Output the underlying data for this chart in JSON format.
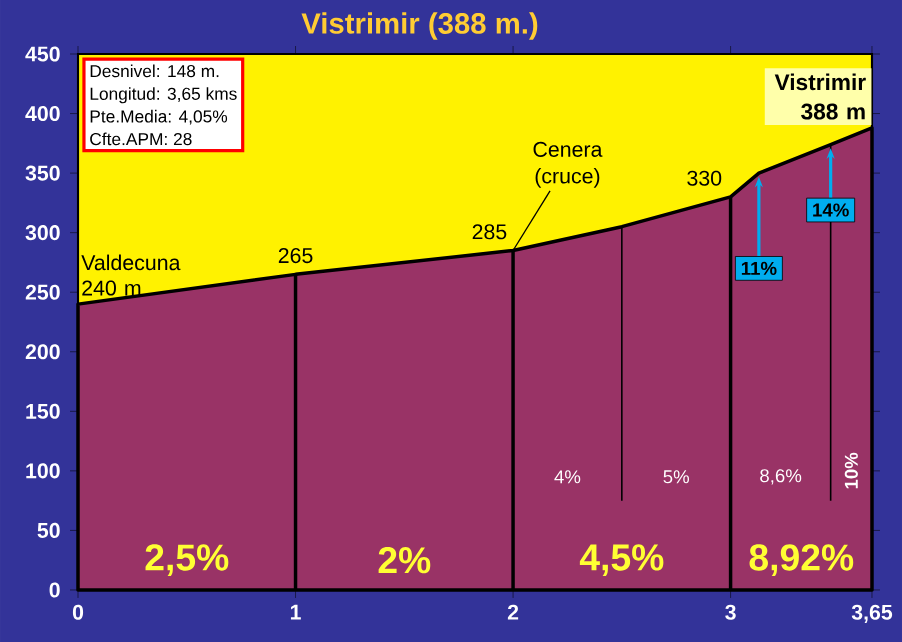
{
  "chart_data": {
    "type": "area",
    "title": "Vistrimir (388 m.)",
    "x": [
      0,
      1,
      2,
      2.5,
      3,
      3.13,
      3.46,
      3.65
    ],
    "series": [
      {
        "values": [
          240,
          265,
          285,
          305,
          330,
          350,
          374,
          388
        ],
        "color": "#993366"
      }
    ],
    "xlim": [
      0,
      3.65
    ],
    "xticks": [
      0,
      1,
      2,
      3,
      {
        "value": 3.65,
        "label": "3,65"
      }
    ],
    "ylim": [
      0,
      450
    ],
    "yticks": [
      0,
      50,
      100,
      150,
      200,
      250,
      300,
      350,
      400,
      450
    ],
    "ref_lines": [
      {
        "axis": "x",
        "value": 1
      },
      {
        "axis": "x",
        "value": 2
      },
      {
        "axis": "x",
        "value": 2.5
      },
      {
        "axis": "x",
        "value": 3
      },
      {
        "axis": "x",
        "value": 3.46
      }
    ],
    "annotations": [
      "Desnivel: 148 m.",
      "Longitud: 3,65 kms",
      "Pte.Media: 4,05%",
      "Cfte.APM: 28",
      {
        "text": "Valdecuna 240 m",
        "x": 0,
        "y": 240
      },
      {
        "text": "265",
        "x": 1,
        "y": 265
      },
      {
        "text": "285",
        "x": 2,
        "y": 285
      },
      {
        "text": "Cenera (cruce)",
        "x": 2,
        "y": 285
      },
      {
        "text": "330",
        "x": 3,
        "y": 330
      },
      {
        "text": "Vistrimir 388 m",
        "x": 3.65,
        "y": 388
      },
      "2,5%",
      "2%",
      "4,5%",
      "8,92%",
      "4%",
      "5%",
      "8,6%",
      "10%",
      {
        "text": "11%",
        "x": 3.13,
        "y": 350
      },
      {
        "text": "14%",
        "x": 3.46,
        "y": 374
      }
    ]
  }
}
